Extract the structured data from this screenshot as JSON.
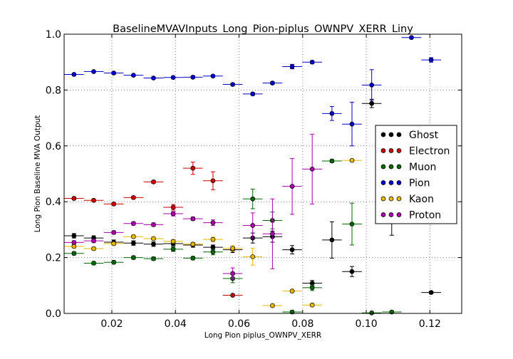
{
  "chart_data": {
    "type": "scatter",
    "title": "BaselineMVAVInputs_Long_Pion-piplus_OWNPV_XERR_Liny",
    "xlabel": "Long Pion piplus_OWNPV_XERR",
    "ylabel": "Long Pion Baseline MVA Output",
    "xlim": [
      0.005,
      0.13
    ],
    "ylim": [
      0.0,
      1.0
    ],
    "x_ticks": [
      "0.02",
      "0.04",
      "0.06",
      "0.08",
      "0.10",
      "0.12"
    ],
    "y_ticks": [
      "0.0",
      "0.2",
      "0.4",
      "0.6",
      "0.8",
      "1.0"
    ],
    "grid": true,
    "legend_position": "right",
    "x_bin_halfwidth": 0.0031,
    "series": [
      {
        "name": "Ghost",
        "color": "#000000",
        "x": [
          0.0081,
          0.0143,
          0.0206,
          0.0268,
          0.0331,
          0.0393,
          0.0455,
          0.0518,
          0.058,
          0.0643,
          0.0705,
          0.0767,
          0.083,
          0.0892,
          0.0955,
          0.1017,
          0.108,
          0.1204
        ],
        "y": [
          0.278,
          0.27,
          0.255,
          0.252,
          0.248,
          0.25,
          0.245,
          0.237,
          0.228,
          0.27,
          0.275,
          0.228,
          0.108,
          0.263,
          0.15,
          0.752,
          0.33,
          0.075
        ],
        "yerr": [
          0.008,
          0.008,
          0.008,
          0.008,
          0.008,
          0.008,
          0.008,
          0.008,
          0.01,
          0.018,
          0.02,
          0.015,
          0.01,
          0.065,
          0.018,
          0.015,
          0.05,
          0.004
        ]
      },
      {
        "name": "Electron",
        "color": "#cc0000",
        "x": [
          0.0081,
          0.0143,
          0.0206,
          0.0268,
          0.0331,
          0.0393,
          0.0455,
          0.0518,
          0.058
        ],
        "y": [
          0.412,
          0.405,
          0.392,
          0.415,
          0.471,
          0.38,
          0.52,
          0.475,
          0.065
        ],
        "yerr": [
          0.005,
          0.005,
          0.005,
          0.005,
          0.005,
          0.01,
          0.022,
          0.032,
          0.004
        ]
      },
      {
        "name": "Muon",
        "color": "#006600",
        "x": [
          0.0081,
          0.0143,
          0.0206,
          0.0268,
          0.0331,
          0.0393,
          0.0455,
          0.0518,
          0.058,
          0.0643,
          0.0705,
          0.0767,
          0.083,
          0.0892,
          0.0955,
          0.1017,
          0.108
        ],
        "y": [
          0.215,
          0.18,
          0.183,
          0.2,
          0.196,
          0.23,
          0.198,
          0.22,
          0.125,
          0.41,
          0.333,
          0.005,
          0.092,
          0.546,
          0.32,
          0.002,
          0.005
        ],
        "yerr": [
          0.006,
          0.006,
          0.006,
          0.006,
          0.006,
          0.008,
          0.006,
          0.01,
          0.015,
          0.035,
          0.03,
          0.005,
          0.01,
          0.005,
          0.075,
          0.003,
          0.004
        ]
      },
      {
        "name": "Pion",
        "color": "#0000cc",
        "x": [
          0.0081,
          0.0143,
          0.0206,
          0.0268,
          0.0331,
          0.0393,
          0.0455,
          0.0518,
          0.058,
          0.0643,
          0.0705,
          0.0767,
          0.083,
          0.0892,
          0.0955,
          0.1017,
          0.1142,
          0.1204
        ],
        "y": [
          0.856,
          0.866,
          0.861,
          0.853,
          0.843,
          0.845,
          0.846,
          0.85,
          0.82,
          0.786,
          0.825,
          0.884,
          0.9,
          0.716,
          0.678,
          0.818,
          0.988,
          0.908
        ],
        "yerr": [
          0.004,
          0.004,
          0.004,
          0.004,
          0.004,
          0.004,
          0.004,
          0.004,
          0.005,
          0.005,
          0.005,
          0.008,
          0.005,
          0.025,
          0.078,
          0.055,
          0.004,
          0.008
        ]
      },
      {
        "name": "Kaon",
        "color": "#e6b800",
        "x": [
          0.0081,
          0.0143,
          0.0206,
          0.0268,
          0.0331,
          0.0393,
          0.0455,
          0.0518,
          0.058,
          0.0643,
          0.0705,
          0.0767,
          0.083,
          0.0955
        ],
        "y": [
          0.24,
          0.232,
          0.25,
          0.275,
          0.268,
          0.258,
          0.248,
          0.265,
          0.233,
          0.203,
          0.028,
          0.08,
          0.03,
          0.548
        ],
        "yerr": [
          0.006,
          0.006,
          0.006,
          0.006,
          0.006,
          0.006,
          0.006,
          0.008,
          0.01,
          0.03,
          0.005,
          0.005,
          0.005,
          0.004
        ]
      },
      {
        "name": "Proton",
        "color": "#aa00aa",
        "x": [
          0.0081,
          0.0143,
          0.0206,
          0.0268,
          0.0331,
          0.0393,
          0.0455,
          0.0518,
          0.058,
          0.0643,
          0.0705,
          0.0767,
          0.083
        ],
        "y": [
          0.254,
          0.26,
          0.29,
          0.322,
          0.318,
          0.357,
          0.339,
          0.325,
          0.143,
          0.315,
          0.285,
          0.455,
          0.517
        ],
        "yerr": [
          0.006,
          0.006,
          0.006,
          0.006,
          0.006,
          0.008,
          0.006,
          0.01,
          0.02,
          0.045,
          0.125,
          0.1,
          0.125
        ]
      }
    ]
  }
}
